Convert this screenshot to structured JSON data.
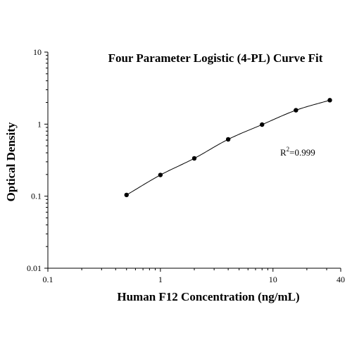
{
  "chart_data": {
    "type": "scatter",
    "title": "Four Parameter Logistic (4-PL) Curve Fit",
    "xlabel": "Human F12 Concentration (ng/mL)",
    "ylabel": "Optical Density",
    "x_scale": "log",
    "y_scale": "log",
    "xlim": [
      0.1,
      40
    ],
    "ylim": [
      0.01,
      10
    ],
    "x_ticks": [
      {
        "value": 0.1,
        "label": "0.1"
      },
      {
        "value": 1,
        "label": "1"
      },
      {
        "value": 10,
        "label": "10"
      },
      {
        "value": 40,
        "label": "40"
      }
    ],
    "y_ticks": [
      {
        "value": 0.01,
        "label": "0.01"
      },
      {
        "value": 0.1,
        "label": "0.1"
      },
      {
        "value": 1,
        "label": "1"
      },
      {
        "value": 10,
        "label": "10"
      }
    ],
    "grid": false,
    "series": [
      {
        "points": [
          {
            "x": 0.5,
            "y": 0.104
          },
          {
            "x": 1,
            "y": 0.197
          },
          {
            "x": 2,
            "y": 0.335
          },
          {
            "x": 4,
            "y": 0.615
          },
          {
            "x": 8,
            "y": 0.985
          },
          {
            "x": 16,
            "y": 1.56
          },
          {
            "x": 32,
            "y": 2.15
          }
        ]
      }
    ],
    "fit_curve": {
      "type": "4PL",
      "color": "#000000"
    },
    "annotations": [
      {
        "base": "R",
        "superscript": "2",
        "rest": "=0.999"
      }
    ],
    "marker_color": "#000000"
  }
}
